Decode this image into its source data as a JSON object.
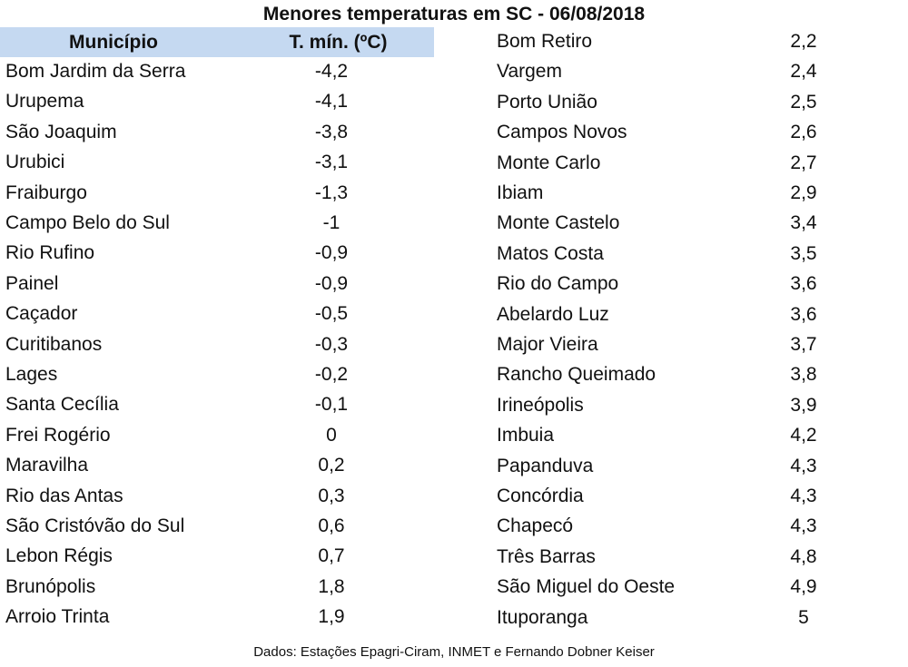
{
  "title": "Menores temperaturas em SC - 06/08/2018",
  "header": {
    "municipio": "Município",
    "tmin": "T. mín. (ºC)"
  },
  "left_rows": [
    {
      "municipio": "Bom Jardim da Serra",
      "tmin": "-4,2"
    },
    {
      "municipio": "Urupema",
      "tmin": "-4,1"
    },
    {
      "municipio": "São Joaquim",
      "tmin": "-3,8"
    },
    {
      "municipio": "Urubici",
      "tmin": "-3,1"
    },
    {
      "municipio": "Fraiburgo",
      "tmin": "-1,3"
    },
    {
      "municipio": "Campo Belo do Sul",
      "tmin": "-1"
    },
    {
      "municipio": "Rio Rufino",
      "tmin": "-0,9"
    },
    {
      "municipio": "Painel",
      "tmin": "-0,9"
    },
    {
      "municipio": "Caçador",
      "tmin": "-0,5"
    },
    {
      "municipio": "Curitibanos",
      "tmin": "-0,3"
    },
    {
      "municipio": "Lages",
      "tmin": "-0,2"
    },
    {
      "municipio": "Santa Cecília",
      "tmin": "-0,1"
    },
    {
      "municipio": "Frei Rogério",
      "tmin": "0"
    },
    {
      "municipio": "Maravilha",
      "tmin": "0,2"
    },
    {
      "municipio": "Rio das Antas",
      "tmin": "0,3"
    },
    {
      "municipio": "São Cristóvão do Sul",
      "tmin": "0,6"
    },
    {
      "municipio": "Lebon Régis",
      "tmin": "0,7"
    },
    {
      "municipio": "Brunópolis",
      "tmin": "1,8"
    },
    {
      "municipio": "Arroio Trinta",
      "tmin": "1,9"
    }
  ],
  "right_rows": [
    {
      "municipio": "Bom Retiro",
      "tmin": "2,2"
    },
    {
      "municipio": "Vargem",
      "tmin": "2,4"
    },
    {
      "municipio": "Porto União",
      "tmin": "2,5"
    },
    {
      "municipio": "Campos Novos",
      "tmin": "2,6"
    },
    {
      "municipio": "Monte Carlo",
      "tmin": "2,7"
    },
    {
      "municipio": "Ibiam",
      "tmin": "2,9"
    },
    {
      "municipio": "Monte Castelo",
      "tmin": "3,4"
    },
    {
      "municipio": "Matos Costa",
      "tmin": "3,5"
    },
    {
      "municipio": "Rio do Campo",
      "tmin": "3,6"
    },
    {
      "municipio": "Abelardo Luz",
      "tmin": "3,6"
    },
    {
      "municipio": "Major Vieira",
      "tmin": "3,7"
    },
    {
      "municipio": "Rancho Queimado",
      "tmin": "3,8"
    },
    {
      "municipio": "Irineópolis",
      "tmin": "3,9"
    },
    {
      "municipio": "Imbuia",
      "tmin": "4,2"
    },
    {
      "municipio": "Papanduva",
      "tmin": "4,3"
    },
    {
      "municipio": "Concórdia",
      "tmin": "4,3"
    },
    {
      "municipio": "Chapecó",
      "tmin": "4,3"
    },
    {
      "municipio": "Três Barras",
      "tmin": "4,8"
    },
    {
      "municipio": "São Miguel do Oeste",
      "tmin": "4,9"
    },
    {
      "municipio": "Ituporanga",
      "tmin": "5"
    }
  ],
  "footer": "Dados: Estações Epagri-Ciram, INMET e Fernando Dobner Keiser"
}
